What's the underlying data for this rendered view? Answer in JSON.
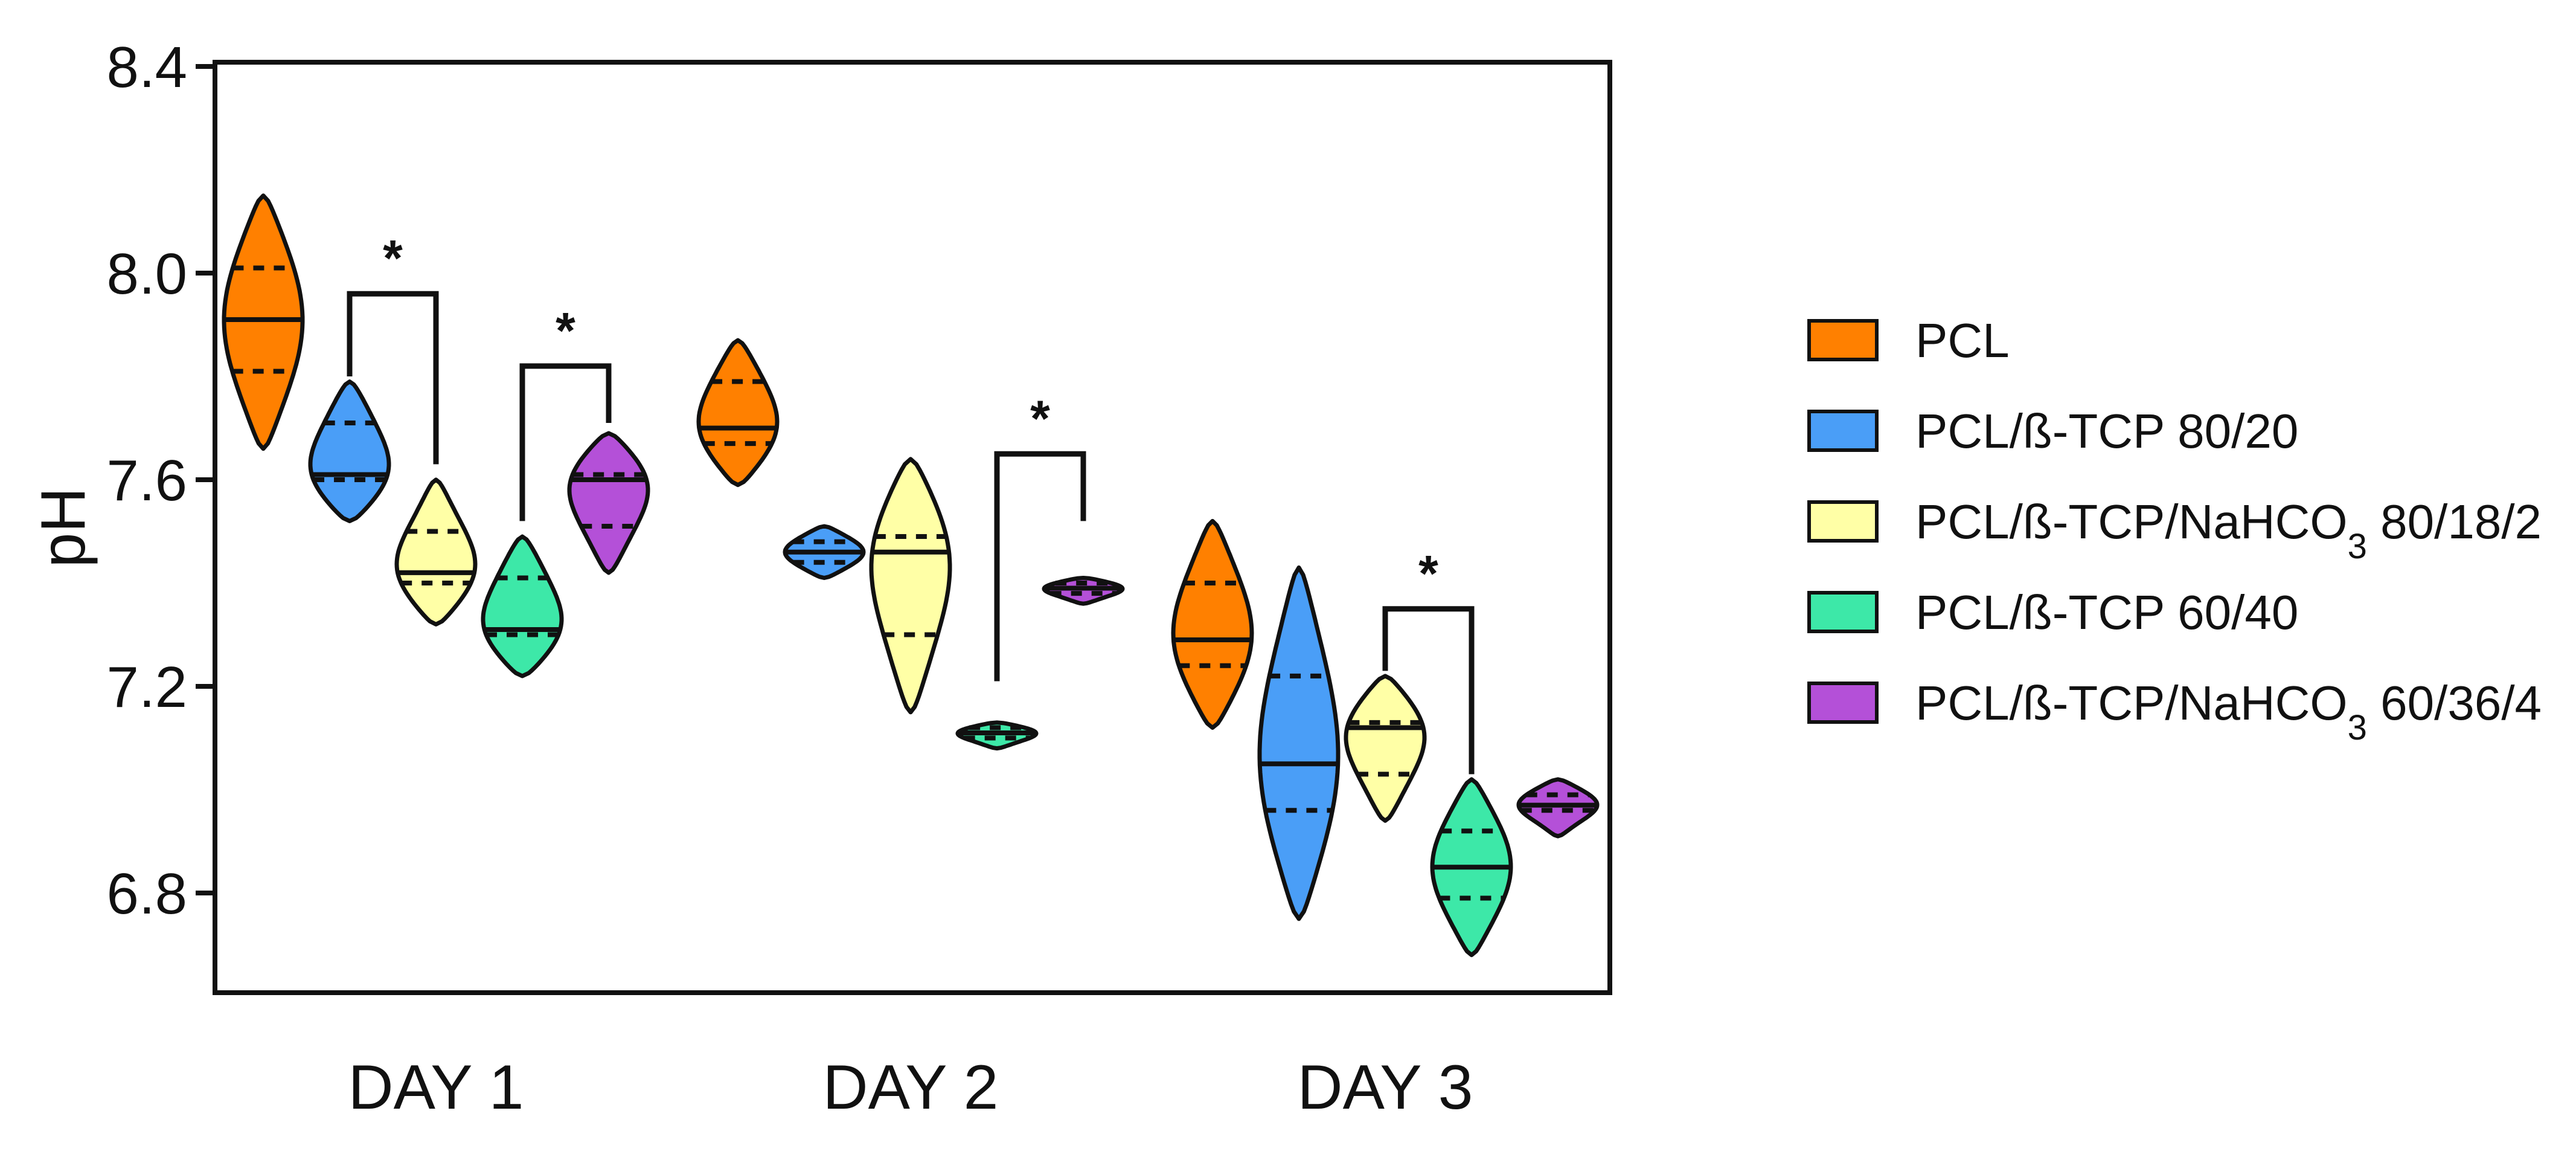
{
  "chart_data": {
    "type": "violin",
    "xlabel": "",
    "ylabel": "pH",
    "ylim": [
      6.62,
      8.4
    ],
    "yticks": [
      "6.8",
      "7.2",
      "7.6",
      "8.0",
      "8.4"
    ],
    "yticks_values": [
      6.8,
      7.2,
      7.6,
      8.0,
      8.4
    ],
    "categories": [
      "DAY 1",
      "DAY 2",
      "DAY 3"
    ],
    "legend_position": "right",
    "grid": false,
    "series": [
      {
        "name": "PCL",
        "name_sub": "",
        "name_suffix": "",
        "color": "#FF8000",
        "values": [
          {
            "min": 7.66,
            "q1": 7.81,
            "median": 7.91,
            "q3": 8.01,
            "max": 8.15
          },
          {
            "min": 7.59,
            "q1": 7.67,
            "median": 7.7,
            "q3": 7.79,
            "max": 7.87
          },
          {
            "min": 7.12,
            "q1": 7.24,
            "median": 7.29,
            "q3": 7.4,
            "max": 7.52
          }
        ]
      },
      {
        "name": "PCL/ß-TCP 80/20",
        "name_sub": "",
        "name_suffix": "",
        "color": "#4A9EF7",
        "values": [
          {
            "min": 7.52,
            "q1": 7.6,
            "median": 7.61,
            "q3": 7.71,
            "max": 7.79
          },
          {
            "min": 7.41,
            "q1": 7.44,
            "median": 7.46,
            "q3": 7.48,
            "max": 7.51
          },
          {
            "min": 6.75,
            "q1": 6.96,
            "median": 7.05,
            "q3": 7.22,
            "max": 7.43
          }
        ]
      },
      {
        "name": "PCL/ß-TCP/NaHCO",
        "name_sub": "3",
        "name_suffix": " 80/18/2",
        "color": "#FFFFA6",
        "values": [
          {
            "min": 7.32,
            "q1": 7.4,
            "median": 7.42,
            "q3": 7.5,
            "max": 7.6
          },
          {
            "min": 7.15,
            "q1": 7.3,
            "median": 7.46,
            "q3": 7.49,
            "max": 7.64
          },
          {
            "min": 6.94,
            "q1": 7.03,
            "median": 7.12,
            "q3": 7.13,
            "max": 7.22
          }
        ]
      },
      {
        "name": "PCL/ß-TCP 60/40",
        "name_sub": "",
        "name_suffix": "",
        "color": "#3DE8A8",
        "values": [
          {
            "min": 7.22,
            "q1": 7.3,
            "median": 7.31,
            "q3": 7.41,
            "max": 7.49
          },
          {
            "min": 7.08,
            "q1": 7.1,
            "median": 7.11,
            "q3": 7.12,
            "max": 7.13
          },
          {
            "min": 6.68,
            "q1": 6.79,
            "median": 6.85,
            "q3": 6.92,
            "max": 7.02
          }
        ]
      },
      {
        "name": "PCL/ß-TCP/NaHCO",
        "name_sub": "3",
        "name_suffix": " 60/36/4",
        "color": "#B450D8",
        "values": [
          {
            "min": 7.42,
            "q1": 7.51,
            "median": 7.6,
            "q3": 7.61,
            "max": 7.69
          },
          {
            "min": 7.36,
            "q1": 7.38,
            "median": 7.39,
            "q3": 7.4,
            "max": 7.41
          },
          {
            "min": 6.91,
            "q1": 6.96,
            "median": 6.97,
            "q3": 6.99,
            "max": 7.02
          }
        ]
      }
    ],
    "annotations": [
      {
        "text": "*",
        "category": "DAY 1",
        "from_series": 1,
        "to_series": 2,
        "y_from": 7.8,
        "y_to": 7.63,
        "bar_y": 7.96
      },
      {
        "text": "*",
        "category": "DAY 1",
        "from_series": 3,
        "to_series": 4,
        "y_from": 7.52,
        "y_to": 7.71,
        "bar_y": 7.82
      },
      {
        "text": "*",
        "category": "DAY 2",
        "from_series": 3,
        "to_series": 4,
        "y_from": 7.21,
        "y_to": 7.52,
        "bar_y": 7.65
      },
      {
        "text": "*",
        "category": "DAY 3",
        "from_series": 2,
        "to_series": 3,
        "y_from": 7.23,
        "y_to": 7.03,
        "bar_y": 7.35
      }
    ]
  }
}
